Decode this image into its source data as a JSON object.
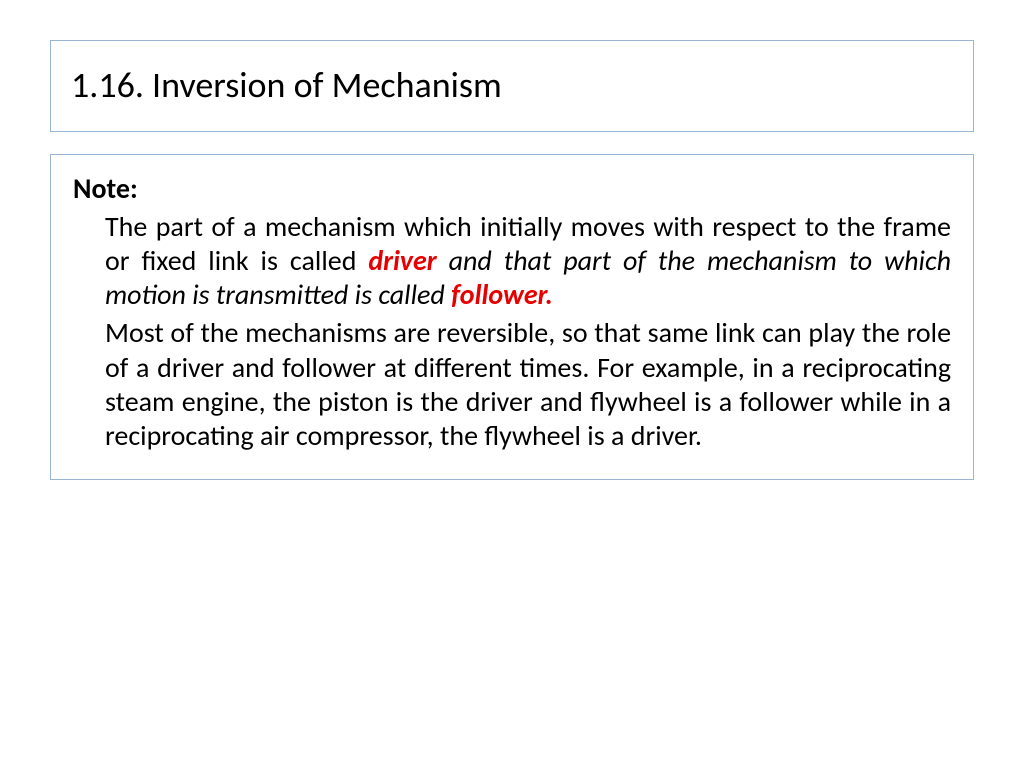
{
  "title": "1.16. Inversion of Mechanism",
  "note_label": "Note:",
  "p1": {
    "seg1": "The part of a mechanism which initially moves with respect to the frame or fixed link is called ",
    "hl1": "driver",
    "seg2": " and that part of the mechanism to which motion is transmitted is called ",
    "hl2": "follower."
  },
  "p2": "Most of the mechanisms are reversible, so that same link can play the role of a driver and follower at different times. For example, in a reciprocating steam engine, the piston is the driver and flywheel is a follower while in a reciprocating air compressor, the flywheel is a driver.",
  "colors": {
    "border": "#9ab5d3",
    "text": "#000000",
    "highlight": "#e60000",
    "background": "#ffffff"
  },
  "typography": {
    "title_fontsize": 36,
    "body_fontsize": 28,
    "font_family": "Calibri"
  }
}
